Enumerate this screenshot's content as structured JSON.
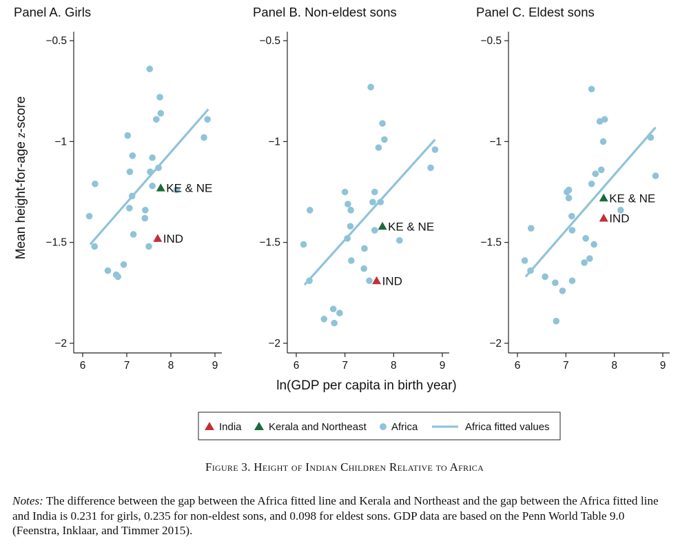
{
  "y_axis_label_prefix": "Mean height-for-age ",
  "y_axis_label_italic": "z",
  "y_axis_label_suffix": "-score",
  "x_axis_label": "ln(GDP per capita in birth year)",
  "colors": {
    "india": "#c0303a",
    "kerala_ne": "#1a6b3a",
    "africa_points": "#8fc3d8",
    "africa_line": "#8fc3d8",
    "axis": "#222222"
  },
  "chart_data": [
    {
      "type": "scatter",
      "title": "Panel A. Girls",
      "xlim": [
        6,
        9
      ],
      "ylim": [
        -0.5,
        -2
      ],
      "x_ticks": [
        6,
        7,
        8,
        9
      ],
      "y_ticks": [
        -0.5,
        -1,
        -1.5,
        -2
      ],
      "y_tick_labels": [
        "−0.5",
        "−1",
        "−1.5",
        "−2"
      ],
      "africa": [
        {
          "x": 7.52,
          "y": -0.64
        },
        {
          "x": 7.75,
          "y": -0.78
        },
        {
          "x": 7.77,
          "y": -0.86
        },
        {
          "x": 7.67,
          "y": -0.89
        },
        {
          "x": 8.83,
          "y": -0.89
        },
        {
          "x": 7.02,
          "y": -0.97
        },
        {
          "x": 8.75,
          "y": -0.98
        },
        {
          "x": 7.13,
          "y": -1.07
        },
        {
          "x": 7.58,
          "y": -1.08
        },
        {
          "x": 7.72,
          "y": -1.13
        },
        {
          "x": 7.07,
          "y": -1.15
        },
        {
          "x": 7.53,
          "y": -1.15
        },
        {
          "x": 6.28,
          "y": -1.21
        },
        {
          "x": 7.58,
          "y": -1.22
        },
        {
          "x": 8.13,
          "y": -1.24
        },
        {
          "x": 7.12,
          "y": -1.27
        },
        {
          "x": 7.06,
          "y": -1.33
        },
        {
          "x": 7.42,
          "y": -1.34
        },
        {
          "x": 6.15,
          "y": -1.37
        },
        {
          "x": 7.41,
          "y": -1.38
        },
        {
          "x": 7.15,
          "y": -1.46
        },
        {
          "x": 6.27,
          "y": -1.52
        },
        {
          "x": 7.5,
          "y": -1.52
        },
        {
          "x": 6.93,
          "y": -1.61
        },
        {
          "x": 6.57,
          "y": -1.64
        },
        {
          "x": 6.76,
          "y": -1.66
        },
        {
          "x": 6.8,
          "y": -1.67
        }
      ],
      "fit": [
        {
          "x": 6.17,
          "y": -1.51
        },
        {
          "x": 8.85,
          "y": -0.84
        }
      ],
      "markers": [
        {
          "name": "KE & NE",
          "group": "kerala_ne",
          "x": 7.77,
          "y": -1.23
        },
        {
          "name": "IND",
          "group": "india",
          "x": 7.7,
          "y": -1.48
        }
      ]
    },
    {
      "type": "scatter",
      "title": "Panel B. Non-eldest sons",
      "xlim": [
        6,
        9
      ],
      "ylim": [
        -0.5,
        -2
      ],
      "x_ticks": [
        6,
        7,
        8,
        9
      ],
      "y_ticks": [
        -0.5,
        -1,
        -1.5,
        -2
      ],
      "y_tick_labels": [
        "−0.5",
        "−1",
        "−1.5",
        "−2"
      ],
      "africa": [
        {
          "x": 7.53,
          "y": -0.73
        },
        {
          "x": 7.77,
          "y": -0.91
        },
        {
          "x": 7.81,
          "y": -0.99
        },
        {
          "x": 7.69,
          "y": -1.03
        },
        {
          "x": 8.85,
          "y": -1.04
        },
        {
          "x": 8.76,
          "y": -1.13
        },
        {
          "x": 7.0,
          "y": -1.25
        },
        {
          "x": 7.61,
          "y": -1.25
        },
        {
          "x": 7.06,
          "y": -1.31
        },
        {
          "x": 7.57,
          "y": -1.3
        },
        {
          "x": 7.73,
          "y": -1.3
        },
        {
          "x": 6.28,
          "y": -1.34
        },
        {
          "x": 7.12,
          "y": -1.34
        },
        {
          "x": 7.11,
          "y": -1.42
        },
        {
          "x": 7.61,
          "y": -1.44
        },
        {
          "x": 7.05,
          "y": -1.48
        },
        {
          "x": 8.12,
          "y": -1.49
        },
        {
          "x": 6.15,
          "y": -1.51
        },
        {
          "x": 7.4,
          "y": -1.53
        },
        {
          "x": 7.13,
          "y": -1.59
        },
        {
          "x": 7.39,
          "y": -1.63
        },
        {
          "x": 6.27,
          "y": -1.69
        },
        {
          "x": 7.5,
          "y": -1.69
        },
        {
          "x": 6.76,
          "y": -1.83
        },
        {
          "x": 6.89,
          "y": -1.85
        },
        {
          "x": 6.57,
          "y": -1.88
        },
        {
          "x": 6.78,
          "y": -1.9
        }
      ],
      "fit": [
        {
          "x": 6.17,
          "y": -1.71
        },
        {
          "x": 8.85,
          "y": -0.99
        }
      ],
      "markers": [
        {
          "name": "KE & NE",
          "group": "kerala_ne",
          "x": 7.77,
          "y": -1.42
        },
        {
          "name": "IND",
          "group": "india",
          "x": 7.65,
          "y": -1.69
        }
      ]
    },
    {
      "type": "scatter",
      "title": "Panel C. Eldest sons",
      "xlim": [
        6,
        9
      ],
      "ylim": [
        -0.5,
        -2
      ],
      "x_ticks": [
        6,
        7,
        8,
        9
      ],
      "y_ticks": [
        -0.5,
        -1,
        -1.5,
        -2
      ],
      "y_tick_labels": [
        "−0.5",
        "−1",
        "−1.5",
        "−2"
      ],
      "africa": [
        {
          "x": 7.53,
          "y": -0.74
        },
        {
          "x": 7.8,
          "y": -0.89
        },
        {
          "x": 7.7,
          "y": -0.9
        },
        {
          "x": 8.75,
          "y": -0.98
        },
        {
          "x": 7.77,
          "y": -1.0
        },
        {
          "x": 7.73,
          "y": -1.14
        },
        {
          "x": 7.61,
          "y": -1.16
        },
        {
          "x": 8.85,
          "y": -1.17
        },
        {
          "x": 7.53,
          "y": -1.21
        },
        {
          "x": 7.02,
          "y": -1.25
        },
        {
          "x": 7.06,
          "y": -1.24
        },
        {
          "x": 7.06,
          "y": -1.28
        },
        {
          "x": 8.13,
          "y": -1.34
        },
        {
          "x": 7.12,
          "y": -1.37
        },
        {
          "x": 6.28,
          "y": -1.43
        },
        {
          "x": 7.13,
          "y": -1.44
        },
        {
          "x": 7.41,
          "y": -1.48
        },
        {
          "x": 7.58,
          "y": -1.51
        },
        {
          "x": 6.15,
          "y": -1.59
        },
        {
          "x": 7.49,
          "y": -1.58
        },
        {
          "x": 7.38,
          "y": -1.6
        },
        {
          "x": 6.27,
          "y": -1.64
        },
        {
          "x": 6.57,
          "y": -1.67
        },
        {
          "x": 7.13,
          "y": -1.69
        },
        {
          "x": 6.78,
          "y": -1.7
        },
        {
          "x": 6.93,
          "y": -1.74
        },
        {
          "x": 6.8,
          "y": -1.89
        }
      ],
      "fit": [
        {
          "x": 6.17,
          "y": -1.67
        },
        {
          "x": 8.85,
          "y": -0.93
        }
      ],
      "markers": [
        {
          "name": "KE & NE",
          "group": "kerala_ne",
          "x": 7.78,
          "y": -1.28
        },
        {
          "name": "IND",
          "group": "india",
          "x": 7.78,
          "y": -1.38
        }
      ]
    }
  ],
  "legend": {
    "placement": "bottom-center",
    "items": [
      {
        "label": "India",
        "kind": "triangle",
        "group": "india"
      },
      {
        "label": "Kerala and Northeast",
        "kind": "triangle",
        "group": "kerala_ne"
      },
      {
        "label": "Africa",
        "kind": "circle",
        "group": "africa_points"
      },
      {
        "label": "Africa fitted values",
        "kind": "line",
        "group": "africa_line"
      }
    ]
  },
  "caption": "Figure 3. Height of Indian Children Relative to Africa",
  "notes_label": "Notes:",
  "notes_text": " The difference between the gap between the Africa fitted line and Kerala and Northeast and the gap between the Africa fitted line and India is 0.231 for girls, 0.235 for non-eldest sons, and 0.098 for eldest sons. GDP data are based on the Penn World Table 9.0 (Feenstra, Inklaar, and Timmer 2015)."
}
